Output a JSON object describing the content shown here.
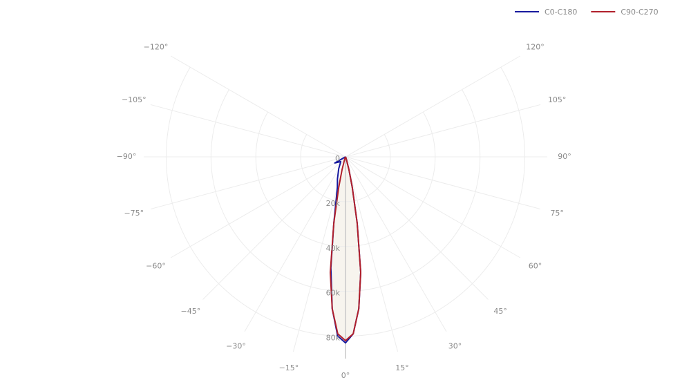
{
  "chart_data": {
    "type": "polar",
    "legend_position": "top-right",
    "rlim": [
      0,
      90000
    ],
    "sector": [
      -120,
      120
    ],
    "radial_ticks": [
      0,
      {
        "value": 20000,
        "label": "20k"
      },
      {
        "value": 40000,
        "label": "40k"
      },
      {
        "value": 60000,
        "label": "60k"
      },
      {
        "value": 80000,
        "label": "80k"
      }
    ],
    "angular_ticks": [
      {
        "value": -120,
        "label": "−120°"
      },
      {
        "value": -105,
        "label": "−105°"
      },
      {
        "value": -90,
        "label": "−90°"
      },
      {
        "value": -75,
        "label": "−75°"
      },
      {
        "value": -60,
        "label": "−60°"
      },
      {
        "value": -45,
        "label": "−45°"
      },
      {
        "value": -30,
        "label": "−30°"
      },
      {
        "value": -15,
        "label": "−15°"
      },
      {
        "value": 0,
        "label": "0°"
      },
      {
        "value": 15,
        "label": "15°"
      },
      {
        "value": 30,
        "label": "30°"
      },
      {
        "value": 45,
        "label": "45°"
      },
      {
        "value": 60,
        "label": "60°"
      },
      {
        "value": 75,
        "label": "75°"
      },
      {
        "value": 90,
        "label": "90°"
      },
      {
        "value": 105,
        "label": "105°"
      },
      {
        "value": 120,
        "label": "120°"
      }
    ],
    "series": [
      {
        "name": "C0-C180",
        "color": "#16199e",
        "theta": [
          -90,
          -60,
          -45,
          -30,
          -20,
          -15,
          -12.5,
          -10,
          -7.5,
          -5,
          -2.5,
          0,
          2.5,
          5,
          7.5,
          10,
          12.5,
          15,
          20,
          30,
          60,
          90
        ],
        "values": [
          0,
          5500,
          3000,
          6000,
          10500,
          14000,
          19000,
          30000,
          50000,
          68000,
          80000,
          83000,
          79000,
          68000,
          52000,
          30000,
          14000,
          6000,
          1000,
          200,
          0,
          0
        ]
      },
      {
        "name": "C90-C270",
        "color": "#b1202b",
        "fill": "#f7f4ee",
        "theta": [
          -90,
          -60,
          -30,
          -20,
          -15,
          -12.5,
          -10,
          -7.5,
          -5,
          -2.5,
          0,
          2.5,
          5,
          7.5,
          10,
          12.5,
          15,
          20,
          30,
          60,
          90
        ],
        "values": [
          0,
          0,
          200,
          1000,
          6000,
          14000,
          30000,
          52000,
          68000,
          79000,
          82000,
          79000,
          68000,
          52000,
          30000,
          14000,
          6000,
          1000,
          200,
          0,
          0
        ]
      }
    ]
  }
}
